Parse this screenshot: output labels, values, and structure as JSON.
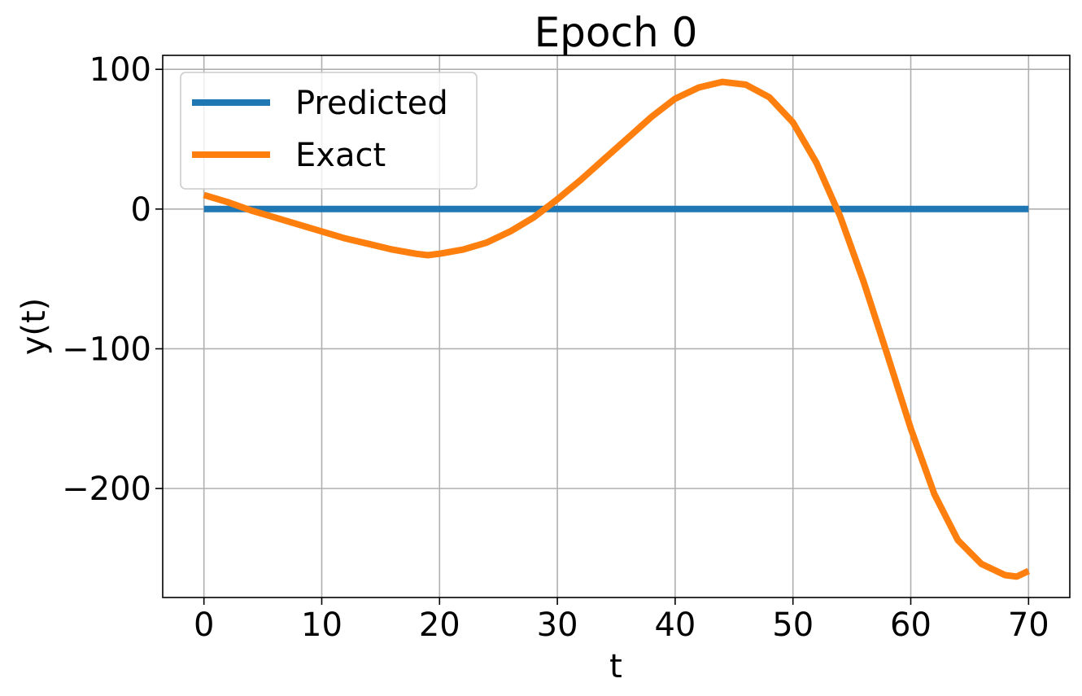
{
  "chart_data": {
    "type": "line",
    "title": "Epoch 0",
    "xlabel": "t",
    "ylabel": "y(t)",
    "xlim": [
      -3.5,
      73.5
    ],
    "ylim": [
      -278,
      110
    ],
    "xticks": [
      0,
      10,
      20,
      30,
      40,
      50,
      60,
      70
    ],
    "xtick_labels": [
      "0",
      "10",
      "20",
      "30",
      "40",
      "50",
      "60",
      "70"
    ],
    "yticks": [
      100,
      0,
      -100,
      -200
    ],
    "ytick_labels": [
      "100",
      "0",
      "−100",
      "−200"
    ],
    "grid": true,
    "legend_position": "top-left",
    "series": [
      {
        "name": "Predicted",
        "color": "#1f77b4",
        "x": [
          0,
          70
        ],
        "y": [
          0,
          0
        ]
      },
      {
        "name": "Exact",
        "color": "#ff7f0e",
        "x": [
          0,
          2,
          4,
          6,
          8,
          10,
          12,
          14,
          16,
          18,
          19,
          20,
          22,
          24,
          26,
          28,
          30,
          32,
          34,
          36,
          38,
          40,
          42,
          44,
          46,
          48,
          50,
          52,
          54,
          56,
          58,
          60,
          62,
          64,
          66,
          68,
          69,
          70
        ],
        "y": [
          10,
          5,
          -1,
          -6,
          -11,
          -16,
          -21,
          -25,
          -29,
          -32,
          -33,
          -32,
          -29,
          -24,
          -16,
          -6,
          7,
          21,
          36,
          51,
          66,
          79,
          87,
          91,
          89,
          80,
          62,
          33,
          -5,
          -52,
          -104,
          -157,
          -204,
          -237,
          -254,
          -262,
          -263,
          -259
        ]
      }
    ]
  }
}
